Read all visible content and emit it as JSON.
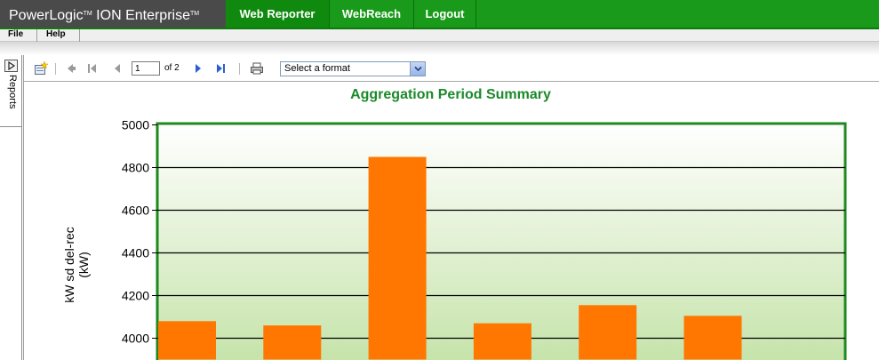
{
  "header": {
    "brand_name": "PowerLogic",
    "brand_tm1": "TM",
    "brand_product": "ION Enterprise",
    "brand_tm2": "TM",
    "nav": [
      "Web Reporter",
      "WebReach",
      "Logout"
    ]
  },
  "menu": [
    "File",
    "Help"
  ],
  "sidepanel": {
    "label": "Reports"
  },
  "toolbar": {
    "page_value": "1",
    "page_of": "of 2",
    "format_placeholder": "Select a format"
  },
  "colors": {
    "topbar": "#1a9a1a",
    "brand_bg": "#4a4a4a",
    "bar": "#ff7700",
    "chart_title": "#1a8a2a",
    "plot_border": "#1d8a1d"
  },
  "icons": [
    "new-report-icon",
    "back-icon",
    "first-page-icon",
    "prev-page-icon",
    "next-page-icon",
    "last-page-icon",
    "print-icon",
    "dropdown-arrow-icon",
    "expand-panel-icon"
  ],
  "chart_data": {
    "type": "bar",
    "title": "Aggregation Period Summary",
    "ylabel": "kW sd del-rec\n(kW)",
    "xlabel": "",
    "ylim": [
      3900,
      5000
    ],
    "yticks": [
      4000,
      4200,
      4400,
      4600,
      4800,
      5000
    ],
    "grid": true,
    "categories": [
      "",
      "",
      "",
      "",
      "",
      "",
      ""
    ],
    "values": [
      4080,
      4060,
      4850,
      4070,
      4155,
      4105,
      null
    ]
  }
}
